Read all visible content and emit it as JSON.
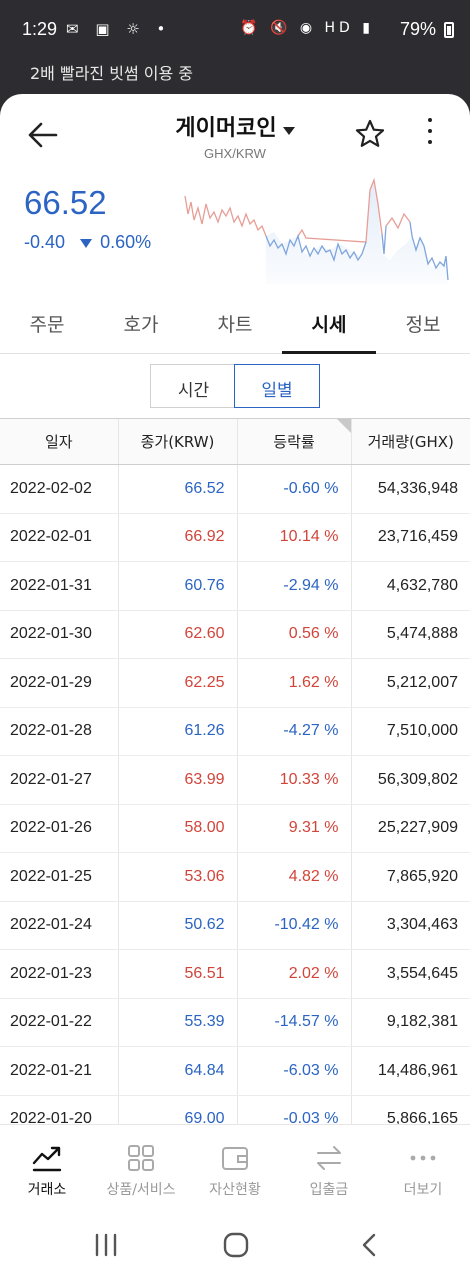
{
  "status_bar": {
    "time": "1:29",
    "battery": "79%"
  },
  "banner": "2배 빨라진 빗썸 이용 중",
  "header": {
    "title": "게이머코인",
    "pair": "GHX/KRW"
  },
  "price": {
    "current": "66.52",
    "change_value": "-0.40",
    "change_percent": "0.60%"
  },
  "tabs": [
    "주문",
    "호가",
    "차트",
    "시세",
    "정보"
  ],
  "active_tab": "시세",
  "toggle": {
    "time": "시간",
    "daily": "일별"
  },
  "table": {
    "headers": [
      "일자",
      "종가(KRW)",
      "등락률",
      "거래량(GHX)"
    ],
    "rows": [
      {
        "date": "2022-02-02",
        "close": "66.52",
        "rate": "-0.60 %",
        "volume": "54,336,948",
        "dir": "down"
      },
      {
        "date": "2022-02-01",
        "close": "66.92",
        "rate": "10.14 %",
        "volume": "23,716,459",
        "dir": "up"
      },
      {
        "date": "2022-01-31",
        "close": "60.76",
        "rate": "-2.94 %",
        "volume": "4,632,780",
        "dir": "down"
      },
      {
        "date": "2022-01-30",
        "close": "62.60",
        "rate": "0.56 %",
        "volume": "5,474,888",
        "dir": "up"
      },
      {
        "date": "2022-01-29",
        "close": "62.25",
        "rate": "1.62 %",
        "volume": "5,212,007",
        "dir": "up"
      },
      {
        "date": "2022-01-28",
        "close": "61.26",
        "rate": "-4.27 %",
        "volume": "7,510,000",
        "dir": "down"
      },
      {
        "date": "2022-01-27",
        "close": "63.99",
        "rate": "10.33 %",
        "volume": "56,309,802",
        "dir": "up"
      },
      {
        "date": "2022-01-26",
        "close": "58.00",
        "rate": "9.31 %",
        "volume": "25,227,909",
        "dir": "up"
      },
      {
        "date": "2022-01-25",
        "close": "53.06",
        "rate": "4.82 %",
        "volume": "7,865,920",
        "dir": "up"
      },
      {
        "date": "2022-01-24",
        "close": "50.62",
        "rate": "-10.42 %",
        "volume": "3,304,463",
        "dir": "down"
      },
      {
        "date": "2022-01-23",
        "close": "56.51",
        "rate": "2.02 %",
        "volume": "3,554,645",
        "dir": "up"
      },
      {
        "date": "2022-01-22",
        "close": "55.39",
        "rate": "-14.57 %",
        "volume": "9,182,381",
        "dir": "down"
      },
      {
        "date": "2022-01-21",
        "close": "64.84",
        "rate": "-6.03 %",
        "volume": "14,486,961",
        "dir": "down"
      },
      {
        "date": "2022-01-20",
        "close": "69.00",
        "rate": "-0.03 %",
        "volume": "5,866,165",
        "dir": "down"
      }
    ]
  },
  "bottom_nav": [
    {
      "label": "거래소",
      "icon": "trend-chart-icon",
      "active": true
    },
    {
      "label": "상품/서비스",
      "icon": "grid-icon",
      "active": false
    },
    {
      "label": "자산현황",
      "icon": "wallet-icon",
      "active": false
    },
    {
      "label": "입출금",
      "icon": "transfer-arrows-icon",
      "active": false
    },
    {
      "label": "더보기",
      "icon": "more-dots-icon",
      "active": false
    }
  ],
  "colors": {
    "up": "#d1443a",
    "down": "#2b64c3"
  }
}
